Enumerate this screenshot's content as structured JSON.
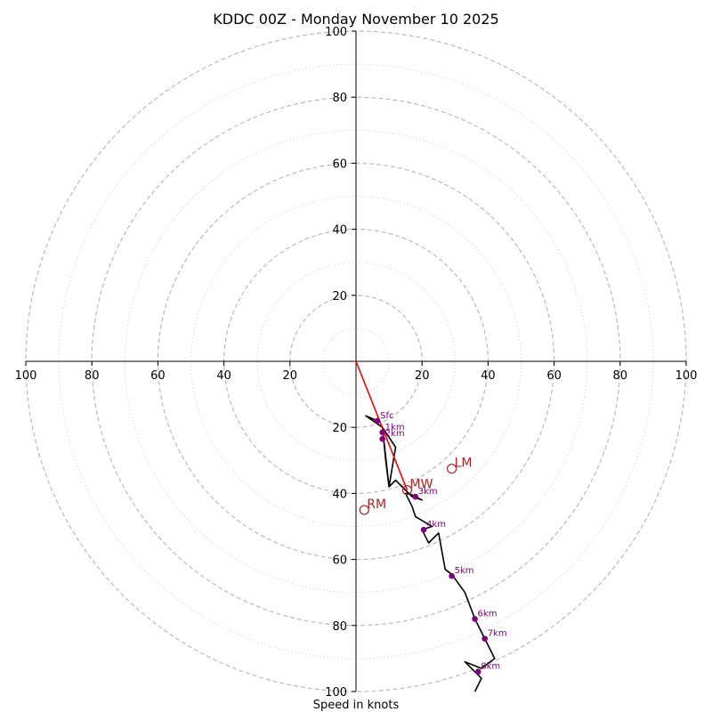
{
  "chart_data": {
    "type": "hodograph",
    "title": "KDDC 00Z - Monday November 10 2025",
    "xlabel": "Speed in knots",
    "xlim": [
      -100,
      100
    ],
    "ylim": [
      -100,
      100
    ],
    "dashed_rings": [
      20,
      40,
      60,
      80,
      100
    ],
    "dotted_rings": [
      10,
      30,
      50,
      70,
      90
    ],
    "x_ticks": [
      {
        "value": -100,
        "label": "100"
      },
      {
        "value": -80,
        "label": "80"
      },
      {
        "value": -60,
        "label": "60"
      },
      {
        "value": -40,
        "label": "40"
      },
      {
        "value": -20,
        "label": "20"
      },
      {
        "value": 20,
        "label": "20"
      },
      {
        "value": 40,
        "label": "40"
      },
      {
        "value": 60,
        "label": "60"
      },
      {
        "value": 80,
        "label": "80"
      },
      {
        "value": 100,
        "label": "100"
      }
    ],
    "y_ticks_up": [
      {
        "value": 20,
        "label": "20"
      },
      {
        "value": 40,
        "label": "40"
      },
      {
        "value": 60,
        "label": "60"
      },
      {
        "value": 80,
        "label": "80"
      },
      {
        "value": 100,
        "label": "100"
      }
    ],
    "y_ticks_down": [
      {
        "value": -20,
        "label": "20"
      },
      {
        "value": -40,
        "label": "40"
      },
      {
        "value": -60,
        "label": "60"
      },
      {
        "value": -80,
        "label": "80"
      },
      {
        "value": -100,
        "label": "100"
      }
    ],
    "trace": [
      [
        6.5,
        -18
      ],
      [
        3,
        -16.5
      ],
      [
        8,
        -20
      ],
      [
        12,
        -26
      ],
      [
        10,
        -38
      ],
      [
        8,
        -20
      ],
      [
        9,
        -30
      ],
      [
        10,
        -38
      ],
      [
        12,
        -36
      ],
      [
        14,
        -38
      ],
      [
        17,
        -41
      ],
      [
        20,
        -42
      ],
      [
        16,
        -40
      ],
      [
        15,
        -40
      ],
      [
        17,
        -44
      ],
      [
        18,
        -47
      ],
      [
        23,
        -50
      ],
      [
        20,
        -51
      ],
      [
        22,
        -55
      ],
      [
        25,
        -52
      ],
      [
        27,
        -63
      ],
      [
        29,
        -64.5
      ],
      [
        33,
        -70
      ],
      [
        36,
        -78
      ],
      [
        39,
        -84
      ],
      [
        42,
        -90
      ],
      [
        38,
        -93
      ],
      [
        33,
        -91
      ],
      [
        38,
        -96
      ],
      [
        36,
        -100
      ]
    ],
    "height_markers": [
      {
        "label": "Sfc",
        "u": 6.5,
        "v": -18
      },
      {
        "label": "1km",
        "u": 8,
        "v": -21.5
      },
      {
        "label": "2km",
        "u": 8,
        "v": -23.5
      },
      {
        "label": "3km",
        "u": 18,
        "v": -41
      },
      {
        "label": "4km",
        "u": 20.5,
        "v": -51
      },
      {
        "label": "5km",
        "u": 29,
        "v": -65
      },
      {
        "label": "6km",
        "u": 36,
        "v": -78
      },
      {
        "label": "7km",
        "u": 39,
        "v": -84
      },
      {
        "label": "8km",
        "u": 37,
        "v": -94
      }
    ],
    "mean_wind_vector": {
      "u": 15.5,
      "v": -39
    },
    "storm_motions": [
      {
        "label": "LM",
        "u": 29,
        "v": -32.5
      },
      {
        "label": "MW",
        "u": 15.5,
        "v": -39
      },
      {
        "label": "RM",
        "u": 2.5,
        "v": -45
      }
    ]
  },
  "colors": {
    "trace": "#000000",
    "marker": "#800080",
    "vector": "#ff0000",
    "storm_motion": "#b22222",
    "ring": "#bbbbbb",
    "axis": "#000000"
  }
}
